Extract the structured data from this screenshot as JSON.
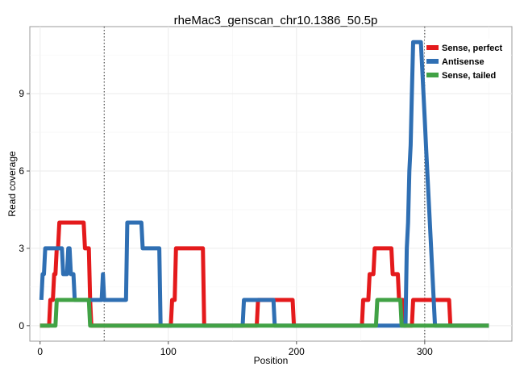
{
  "chart_data": {
    "type": "line",
    "title": "rheMac3_genscan_chr10.1386_50.5p",
    "xlabel": "Position",
    "ylabel": "Read coverage",
    "xlim": [
      -8,
      368
    ],
    "ylim": [
      -0.6,
      11.6
    ],
    "xticks": [
      0,
      100,
      200,
      300
    ],
    "yticks": [
      0,
      3,
      6,
      9
    ],
    "vlines": [
      50,
      300
    ],
    "grid": true,
    "legend_position": "top-right",
    "series": [
      {
        "name": "Sense, perfect",
        "color": "#e41a1c",
        "points": [
          [
            0,
            0
          ],
          [
            7,
            0
          ],
          [
            8,
            1
          ],
          [
            10,
            1
          ],
          [
            11,
            2
          ],
          [
            12,
            2
          ],
          [
            13,
            3
          ],
          [
            14,
            3
          ],
          [
            15,
            4
          ],
          [
            34,
            4
          ],
          [
            35,
            3
          ],
          [
            38,
            3
          ],
          [
            39,
            1
          ],
          [
            40,
            0
          ],
          [
            102,
            0
          ],
          [
            103,
            1
          ],
          [
            105,
            1
          ],
          [
            106,
            3
          ],
          [
            127,
            3
          ],
          [
            128,
            0
          ],
          [
            169,
            0
          ],
          [
            170,
            1
          ],
          [
            197,
            1
          ],
          [
            198,
            0
          ],
          [
            251,
            0
          ],
          [
            252,
            1
          ],
          [
            256,
            1
          ],
          [
            257,
            2
          ],
          [
            260,
            2
          ],
          [
            261,
            3
          ],
          [
            262,
            3
          ],
          [
            263,
            3
          ],
          [
            274,
            3
          ],
          [
            275,
            2
          ],
          [
            279,
            2
          ],
          [
            280,
            1
          ],
          [
            283,
            1
          ],
          [
            284,
            0
          ],
          [
            290,
            0
          ],
          [
            291,
            1
          ],
          [
            319,
            1
          ],
          [
            320,
            0
          ],
          [
            350,
            0
          ]
        ]
      },
      {
        "name": "Antisense",
        "color": "#2f6fb3",
        "points": [
          [
            1,
            1
          ],
          [
            2,
            2
          ],
          [
            3,
            2
          ],
          [
            4,
            3
          ],
          [
            17,
            3
          ],
          [
            18,
            2
          ],
          [
            21,
            2
          ],
          [
            22,
            3
          ],
          [
            23,
            3
          ],
          [
            24,
            2
          ],
          [
            26,
            2
          ],
          [
            27,
            1
          ],
          [
            48,
            1
          ],
          [
            49,
            2
          ],
          [
            50,
            1
          ],
          [
            67,
            1
          ],
          [
            68,
            4
          ],
          [
            79,
            4
          ],
          [
            80,
            3
          ],
          [
            93,
            3
          ],
          [
            94,
            0
          ],
          [
            158,
            0
          ],
          [
            159,
            1
          ],
          [
            182,
            1
          ],
          [
            183,
            0
          ],
          [
            285,
            0
          ],
          [
            286,
            3
          ],
          [
            287,
            4
          ],
          [
            288,
            6
          ],
          [
            289,
            7
          ],
          [
            290,
            9
          ],
          [
            291,
            11
          ],
          [
            297,
            11
          ],
          [
            298,
            10
          ],
          [
            299,
            9
          ],
          [
            300,
            8
          ],
          [
            301,
            7
          ],
          [
            302,
            6
          ],
          [
            303,
            5
          ],
          [
            304,
            4
          ],
          [
            305,
            3
          ],
          [
            306,
            2
          ],
          [
            307,
            1
          ],
          [
            308,
            0
          ],
          [
            350,
            0
          ]
        ]
      },
      {
        "name": "Sense, tailed",
        "color": "#41a245",
        "points": [
          [
            0,
            0
          ],
          [
            12,
            0
          ],
          [
            13,
            1
          ],
          [
            38,
            1
          ],
          [
            39,
            0
          ],
          [
            262,
            0
          ],
          [
            263,
            1
          ],
          [
            281,
            1
          ],
          [
            282,
            0
          ],
          [
            350,
            0
          ]
        ]
      }
    ]
  }
}
